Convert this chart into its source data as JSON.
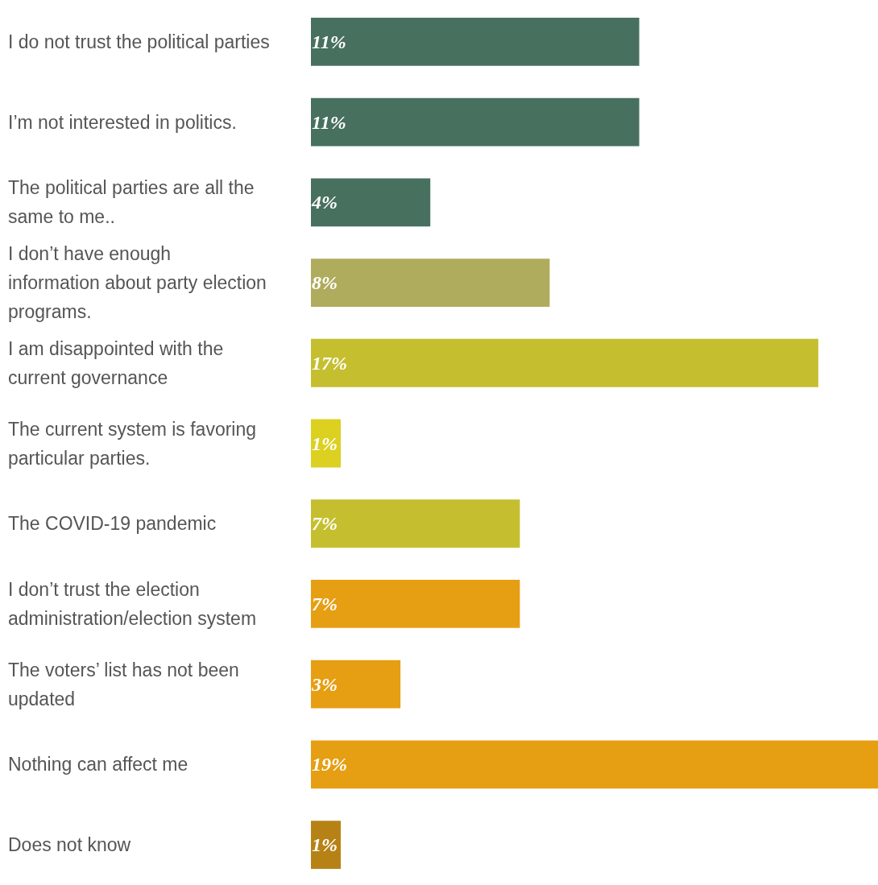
{
  "chart_data": {
    "type": "bar",
    "orientation": "horizontal",
    "categories": [
      "I do not trust the political parties",
      "I’m not interested in politics.",
      "The political parties are all the same to me..",
      "I don’t have enough information about party election programs.",
      "I am disappointed with the current governance",
      "The current system is favoring particular parties.",
      "The COVID-19 pandemic",
      "I don’t trust the election administration/election system",
      "The voters’ list has not been updated",
      "Nothing can affect me",
      "Does not know"
    ],
    "values": [
      11,
      11,
      4,
      8,
      17,
      1,
      7,
      7,
      3,
      19,
      1
    ],
    "value_labels": [
      "11%",
      "11%",
      "4%",
      "8%",
      "17%",
      "1%",
      "7%",
      "7%",
      "3%",
      "19%",
      "1%"
    ],
    "colors": [
      "#47705f",
      "#47705f",
      "#47705f",
      "#b0ac5e",
      "#c5bf30",
      "#dcd021",
      "#c5bf30",
      "#e69e12",
      "#e69e12",
      "#e69e12",
      "#b78215"
    ],
    "xlim": [
      0,
      19
    ],
    "tick_labels": "y"
  }
}
